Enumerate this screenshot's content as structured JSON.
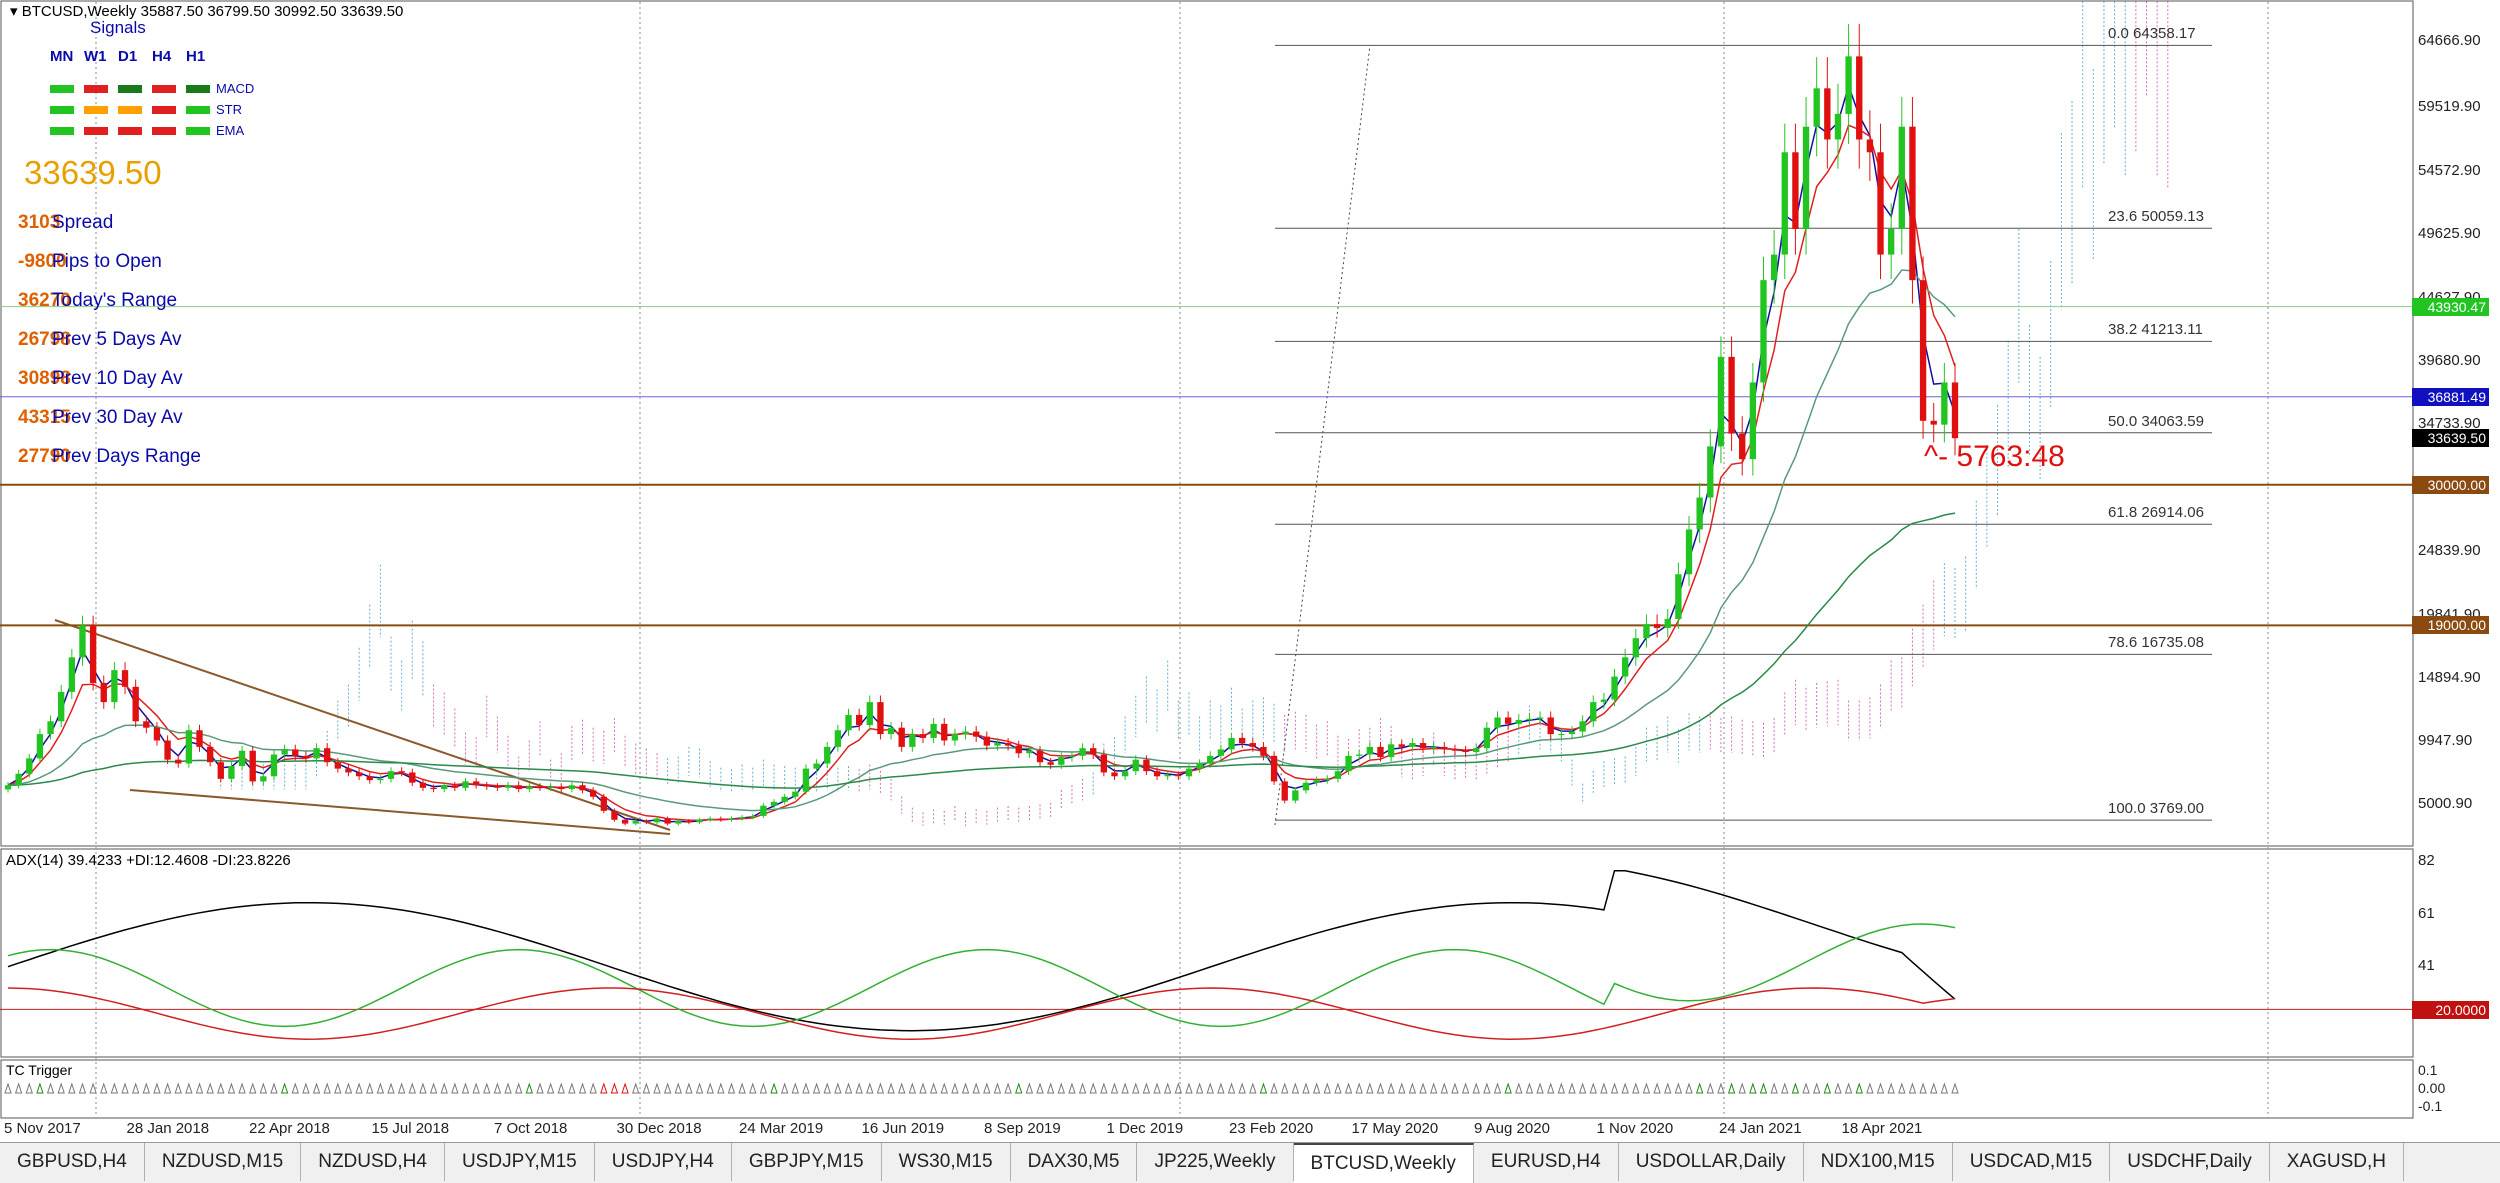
{
  "window": {
    "title": "BTCUSD,Weekly  35887.50 36799.50 30992.50 33639.50"
  },
  "signals": {
    "title": "Signals",
    "timeframes": [
      "MN",
      "W1",
      "D1",
      "H4",
      "H1"
    ],
    "rows": [
      {
        "name": "MACD",
        "colors": [
          "#22c422",
          "#e02020",
          "#1a7a1a",
          "#e02020",
          "#1a7a1a"
        ]
      },
      {
        "name": "STR",
        "colors": [
          "#22c422",
          "#ffa000",
          "#ffa000",
          "#e02020",
          "#22c422"
        ]
      },
      {
        "name": "EMA",
        "colors": [
          "#22c422",
          "#e02020",
          "#e02020",
          "#e02020",
          "#22c422"
        ]
      }
    ]
  },
  "price": "33639.50",
  "stats": [
    {
      "value": "3103",
      "label": "Spread"
    },
    {
      "value": "-9800",
      "label": "Pips to Open"
    },
    {
      "value": "36270",
      "label": "Today's Range"
    },
    {
      "value": "26798",
      "label": "Prev 5 Days Av"
    },
    {
      "value": "30898",
      "label": "Prev 10 Day Av"
    },
    {
      "value": "43315",
      "label": "Prev 30 Day Av"
    },
    {
      "value": "27790",
      "label": "Prev Days Range"
    }
  ],
  "fib": [
    {
      "level": "0.0",
      "price": "64358.17"
    },
    {
      "level": "23.6",
      "price": "50059.13"
    },
    {
      "level": "38.2",
      "price": "41213.11"
    },
    {
      "level": "50.0",
      "price": "34063.59"
    },
    {
      "level": "61.8",
      "price": "26914.06"
    },
    {
      "level": "78.6",
      "price": "16735.08"
    },
    {
      "level": "100.0",
      "price": "3769.00"
    }
  ],
  "annotation": "^- 5763:48",
  "y_axis_ticks": [
    "64666.90",
    "59519.90",
    "54572.90",
    "49625.90",
    "44627.90",
    "39680.90",
    "34733.90",
    "24839.90",
    "19841.90",
    "14894.90",
    "9947.90",
    "5000.90"
  ],
  "right_labels": [
    {
      "text": "43930.47",
      "bg": "#22c422",
      "fg": "#ffffff"
    },
    {
      "text": "36881.49",
      "bg": "#1010c0",
      "fg": "#ffffff"
    },
    {
      "text": "33639.50",
      "bg": "#000000",
      "fg": "#ffffff"
    },
    {
      "text": "30000.00",
      "bg": "#8a4a10",
      "fg": "#ffffff"
    },
    {
      "text": "19000.00",
      "bg": "#8a4a10",
      "fg": "#ffffff"
    }
  ],
  "adx": {
    "label": "ADX(14) 39.4233 +DI:12.4608 -DI:23.8226",
    "ticks": [
      "82",
      "61",
      "41"
    ],
    "level_label": "20.0000"
  },
  "tc": {
    "label": "TC Trigger",
    "ticks": [
      "0.1",
      "0.00",
      "-0.1"
    ]
  },
  "x_axis": [
    "5 Nov 2017",
    "28 Jan 2018",
    "22 Apr 2018",
    "15 Jul 2018",
    "7 Oct 2018",
    "30 Dec 2018",
    "24 Mar 2019",
    "16 Jun 2019",
    "8 Sep 2019",
    "1 Dec 2019",
    "23 Feb 2020",
    "17 May 2020",
    "9 Aug 2020",
    "1 Nov 2020",
    "24 Jan 2021",
    "18 Apr 2021"
  ],
  "tabs": [
    "GBPUSD,H4",
    "NZDUSD,M15",
    "NZDUSD,H4",
    "USDJPY,M15",
    "USDJPY,H4",
    "GBPJPY,M15",
    "WS30,M15",
    "DAX30,M5",
    "JP225,Weekly",
    "BTCUSD,Weekly",
    "EURUSD,H4",
    "USDOLLAR,Daily",
    "NDX100,M15",
    "USDCAD,M15",
    "USDCHF,Daily",
    "XAGUSD,H"
  ],
  "active_tab": "BTCUSD,Weekly",
  "colors": {
    "bull": "#22c422",
    "bear": "#e01010",
    "ema_fast": "#1010a0",
    "ema_slow": "#e02020",
    "ema_long": "#2a8a4a",
    "support": "#8a4a10"
  },
  "chart_data": {
    "type": "candlestick",
    "symbol": "BTCUSD",
    "timeframe": "Weekly",
    "ylim": [
      3000,
      66500
    ],
    "candles_close": [
      6500,
      7400,
      8600,
      10500,
      11500,
      13800,
      16500,
      19000,
      14500,
      13000,
      15500,
      14200,
      11500,
      11000,
      10000,
      8500,
      8200,
      10800,
      9500,
      8300,
      7000,
      8000,
      9200,
      6800,
      7200,
      8900,
      9300,
      8800,
      8600,
      9400,
      8300,
      7800,
      7500,
      7200,
      6900,
      7000,
      7600,
      7500,
      6700,
      6300,
      6200,
      6500,
      6300,
      6800,
      6500,
      6400,
      6300,
      6500,
      6200,
      6400,
      6300,
      6400,
      6200,
      6500,
      6100,
      5600,
      4500,
      3800,
      3500,
      3700,
      3600,
      3900,
      3500,
      3700,
      3600,
      3800,
      3900,
      3800,
      3900,
      4000,
      4100,
      4900,
      5200,
      5600,
      6000,
      7800,
      8200,
      9500,
      10800,
      12000,
      11200,
      13000,
      10500,
      11000,
      9500,
      10500,
      10200,
      11300,
      10000,
      10500,
      10700,
      10300,
      9600,
      9800,
      9600,
      9000,
      9200,
      8300,
      8100,
      8700,
      8800,
      9400,
      8900,
      7500,
      7200,
      7600,
      8500,
      7600,
      7200,
      7300,
      7200,
      7800,
      8200,
      8800,
      9300,
      10200,
      9800,
      9500,
      8800,
      6800,
      5300,
      6100,
      6700,
      6900,
      7000,
      7600,
      8800,
      8900,
      9500,
      8700,
      9700,
      9500,
      9800,
      9400,
      9500,
      9300,
      9200,
      9100,
      9400,
      11000,
      11800,
      11300,
      11600,
      11700,
      11800,
      10500,
      10500,
      10700,
      11500,
      13000,
      13200,
      15000,
      16500,
      18000,
      19100,
      18800,
      19500,
      23000,
      26500,
      29000,
      33000,
      40000,
      34000,
      32000,
      38000,
      46000,
      48000,
      56000,
      50000,
      58000,
      61000,
      57000,
      59000,
      63500,
      57000,
      56000,
      48000,
      50000,
      58000,
      46000,
      35000,
      34700,
      38000,
      33639
    ],
    "fib_levels": [
      {
        "level": 0.0,
        "price": 64358.17
      },
      {
        "level": 23.6,
        "price": 50059.13
      },
      {
        "level": 38.2,
        "price": 41213.11
      },
      {
        "level": 50.0,
        "price": 34063.59
      },
      {
        "level": 61.8,
        "price": 26914.06
      },
      {
        "level": 78.6,
        "price": 16735.08
      },
      {
        "level": 100.0,
        "price": 3769.0
      }
    ],
    "horizontal_levels": [
      43930.47,
      36881.49,
      33639.5,
      30000.0,
      19000.0
    ]
  }
}
